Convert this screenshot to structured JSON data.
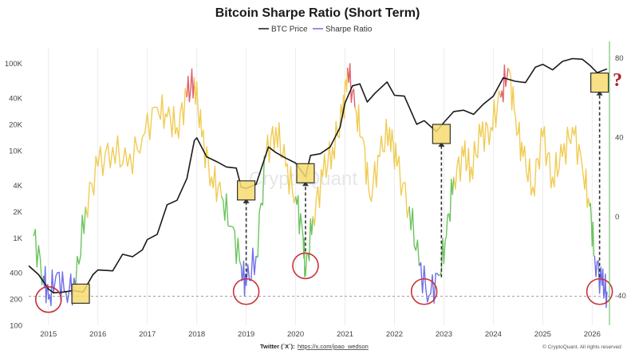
{
  "chart_data": {
    "type": "line",
    "title": "Bitcoin Sharpe Ratio (Short Term)",
    "legend": {
      "position": "top-center",
      "items": [
        {
          "name": "BTC Price",
          "color": "#1a1a1a"
        },
        {
          "name": "Sharpe Ratio",
          "color": "#6f6fe6"
        }
      ]
    },
    "x_ticks": [
      "2015",
      "2016",
      "2017",
      "2018",
      "2019",
      "2020",
      "2021",
      "2022",
      "2023",
      "2024",
      "2025",
      "2026"
    ],
    "x_range": [
      2014.6,
      2026.35
    ],
    "y_left": {
      "scale": "log",
      "ticks": [
        "100",
        "200",
        "400",
        "1K",
        "2K",
        "4K",
        "10K",
        "20K",
        "40K",
        "100K"
      ],
      "values": [
        100,
        200,
        400,
        1000,
        2000,
        4000,
        10000,
        20000,
        40000,
        100000
      ],
      "range": [
        100,
        150000
      ]
    },
    "y_right": {
      "scale": "linear",
      "ticks": [
        "-40",
        "0",
        "40",
        "80"
      ],
      "values": [
        -40,
        0,
        40,
        80
      ],
      "range": [
        -55,
        85
      ]
    },
    "series": [
      {
        "name": "BTC Price",
        "axis": "left",
        "color": "#1a1a1a",
        "x": [
          2014.6,
          2014.8,
          2015.0,
          2015.1,
          2015.3,
          2015.5,
          2015.7,
          2015.9,
          2016.0,
          2016.3,
          2016.5,
          2016.7,
          2016.9,
          2017.0,
          2017.2,
          2017.4,
          2017.6,
          2017.8,
          2017.95,
          2018.0,
          2018.2,
          2018.4,
          2018.6,
          2018.8,
          2018.9,
          2019.0,
          2019.2,
          2019.45,
          2019.6,
          2019.8,
          2020.0,
          2020.2,
          2020.3,
          2020.5,
          2020.7,
          2020.9,
          2021.0,
          2021.15,
          2021.3,
          2021.45,
          2021.6,
          2021.85,
          2022.0,
          2022.2,
          2022.45,
          2022.6,
          2022.85,
          2023.0,
          2023.2,
          2023.4,
          2023.6,
          2023.8,
          2024.0,
          2024.2,
          2024.45,
          2024.65,
          2024.85,
          2025.0,
          2025.2,
          2025.4,
          2025.6,
          2025.8,
          2025.95,
          2026.1,
          2026.3
        ],
        "y": [
          480,
          380,
          260,
          235,
          240,
          250,
          240,
          380,
          430,
          420,
          650,
          610,
          730,
          960,
          1100,
          2400,
          2700,
          4800,
          13000,
          14000,
          8500,
          7500,
          6500,
          6300,
          3800,
          3700,
          4100,
          11000,
          9500,
          8200,
          7200,
          5000,
          8800,
          9200,
          11000,
          18500,
          35000,
          55000,
          58000,
          36000,
          45000,
          61000,
          43000,
          42000,
          20000,
          22000,
          16500,
          21000,
          28000,
          29000,
          26000,
          34000,
          42000,
          68000,
          62000,
          60000,
          90000,
          97000,
          84000,
          105000,
          113000,
          111000,
          95000,
          78000,
          86000
        ]
      },
      {
        "name": "Sharpe Ratio",
        "axis": "right",
        "color": "#6f6fe6",
        "x": [
          2014.7,
          2014.9,
          2015.0,
          2015.15,
          2015.35,
          2015.55,
          2015.75,
          2016.0,
          2016.3,
          2016.6,
          2016.9,
          2017.2,
          2017.4,
          2017.6,
          2017.8,
          2017.95,
          2018.1,
          2018.3,
          2018.5,
          2018.7,
          2018.9,
          2019.0,
          2019.2,
          2019.4,
          2019.6,
          2019.8,
          2020.0,
          2020.15,
          2020.2,
          2020.35,
          2020.55,
          2020.75,
          2020.95,
          2021.05,
          2021.2,
          2021.35,
          2021.5,
          2021.7,
          2021.9,
          2022.05,
          2022.3,
          2022.5,
          2022.7,
          2022.9,
          2023.05,
          2023.2,
          2023.4,
          2023.55,
          2023.75,
          2023.95,
          2024.15,
          2024.3,
          2024.45,
          2024.6,
          2024.8,
          2025.0,
          2025.2,
          2025.4,
          2025.6,
          2025.8,
          2025.95,
          2026.05,
          2026.2,
          2026.3
        ],
        "y": [
          -10,
          -30,
          -42,
          -30,
          -38,
          -35,
          5,
          25,
          35,
          25,
          40,
          55,
          50,
          45,
          60,
          70,
          40,
          20,
          10,
          -5,
          -25,
          -35,
          -20,
          30,
          45,
          25,
          10,
          -10,
          -30,
          0,
          20,
          35,
          50,
          75,
          55,
          40,
          10,
          30,
          45,
          25,
          5,
          -25,
          -40,
          -30,
          -10,
          20,
          30,
          25,
          40,
          45,
          60,
          75,
          50,
          30,
          15,
          40,
          20,
          30,
          45,
          25,
          5,
          -20,
          -35,
          -38
        ]
      }
    ],
    "annotations": [
      {
        "type": "dashed-hline",
        "axis": "left",
        "value": 215
      },
      {
        "type": "circle",
        "x": 2015.0,
        "y_right": -42
      },
      {
        "type": "circle",
        "x": 2019.0,
        "y_right": -38
      },
      {
        "type": "circle",
        "x": 2020.2,
        "y_right": -25
      },
      {
        "type": "circle",
        "x": 2022.6,
        "y_right": -38
      },
      {
        "type": "circle",
        "x": 2026.15,
        "y_right": -38
      },
      {
        "type": "box",
        "x": 2015.65,
        "y_left": 230
      },
      {
        "type": "box",
        "x": 2019.0,
        "y_left": 3500,
        "arrow_from_right": -38
      },
      {
        "type": "box",
        "x": 2020.2,
        "y_left": 5500,
        "arrow_from_right": -25
      },
      {
        "type": "box",
        "x": 2022.95,
        "y_left": 15500,
        "arrow_from_right": -38
      },
      {
        "type": "box",
        "x": 2026.15,
        "y_left": 60000,
        "arrow_from_right": -38
      }
    ],
    "question_mark": "?"
  },
  "footer": {
    "twitter_label": "Twitter (`X`):",
    "twitter_link": "https://x.com/joao_wedson",
    "copyright": "© CryptoQuant. All rights reserved"
  },
  "watermark": "CryptoQuant"
}
